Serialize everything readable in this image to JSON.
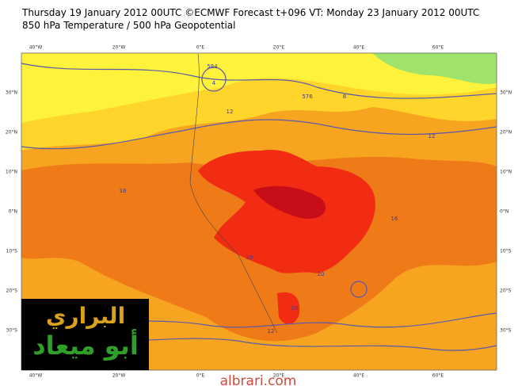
{
  "header": {
    "title": "Thursday 19 January 2012 00UTC ©ECMWF Forecast t+096 VT: Monday 23 January 2012 00UTC",
    "subtitle": "850 hPa Temperature / 500 hPa Geopotential"
  },
  "map": {
    "lon_labels": [
      "40°W",
      "20°W",
      "0°E",
      "20°E",
      "40°E",
      "60°E"
    ],
    "lat_labels": [
      "30°N",
      "20°N",
      "10°N",
      "0°N",
      "10°S",
      "20°S",
      "30°S"
    ],
    "contour_labels": [
      "12",
      "12",
      "16",
      "16",
      "20",
      "20",
      "20",
      "576",
      "584",
      "4",
      "12",
      "8"
    ]
  },
  "watermark": {
    "line1": "البراري",
    "line2": "أبو ميعاد"
  },
  "website": "albrari.com"
}
